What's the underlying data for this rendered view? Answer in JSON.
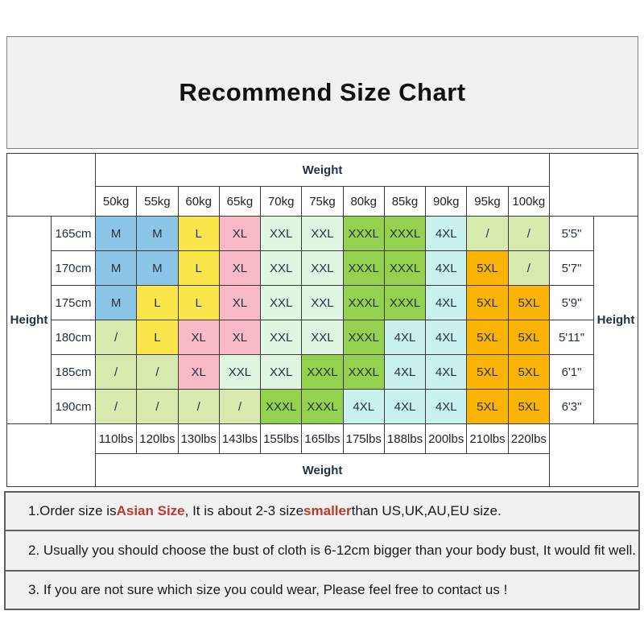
{
  "title": "Recommend Size Chart",
  "chart_data": {
    "type": "table",
    "title": "Recommend Size Chart",
    "weight_axis_label": "Weight",
    "height_axis_label": "Height",
    "kg_columns": [
      "50kg",
      "55kg",
      "60kg",
      "65kg",
      "70kg",
      "75kg",
      "80kg",
      "85kg",
      "90kg",
      "95kg",
      "100kg"
    ],
    "lbs_columns": [
      "110lbs",
      "120lbs",
      "130lbs",
      "143lbs",
      "155lbs",
      "165lbs",
      "175lbs",
      "188lbs",
      "200lbs",
      "210lbs",
      "220lbs"
    ],
    "rows": [
      {
        "cm": "165cm",
        "ft": "5'5\"",
        "sizes": [
          "M",
          "M",
          "L",
          "XL",
          "XXL",
          "XXL",
          "XXXL",
          "XXXL",
          "4XL",
          "/",
          "/"
        ]
      },
      {
        "cm": "170cm",
        "ft": "5'7\"",
        "sizes": [
          "M",
          "M",
          "L",
          "XL",
          "XXL",
          "XXL",
          "XXXL",
          "XXXL",
          "4XL",
          "5XL",
          "/"
        ]
      },
      {
        "cm": "175cm",
        "ft": "5'9\"",
        "sizes": [
          "M",
          "L",
          "L",
          "XL",
          "XXL",
          "XXL",
          "XXXL",
          "XXXL",
          "4XL",
          "5XL",
          "5XL"
        ]
      },
      {
        "cm": "180cm",
        "ft": "5'11\"",
        "sizes": [
          "/",
          "L",
          "XL",
          "XL",
          "XXL",
          "XXL",
          "XXXL",
          "4XL",
          "4XL",
          "5XL",
          "5XL"
        ]
      },
      {
        "cm": "185cm",
        "ft": "6'1\"",
        "sizes": [
          "/",
          "/",
          "XL",
          "XXL",
          "XXL",
          "XXXL",
          "XXXL",
          "4XL",
          "4XL",
          "5XL",
          "5XL"
        ]
      },
      {
        "cm": "190cm",
        "ft": "6'3\"",
        "sizes": [
          "/",
          "/",
          "/",
          "/",
          "XXXL",
          "XXXL",
          "4XL",
          "4XL",
          "4XL",
          "5XL",
          "5XL"
        ]
      }
    ]
  },
  "size_colors": {
    "M": "#8cc6e6",
    "L": "#fae64b",
    "XL": "#f7bac6",
    "XXL": "#dff6e3",
    "XXXL": "#93d14e",
    "4XL": "#c9f2ef",
    "5XL": "#fbb305",
    "/": "#d9eaae"
  },
  "notes": [
    {
      "parts": [
        {
          "text": "1.Order size is ",
          "red": false
        },
        {
          "text": "Asian Size",
          "red": true
        },
        {
          "text": ", It is about 2-3 size ",
          "red": false
        },
        {
          "text": "smaller",
          "red": true
        },
        {
          "text": " than US,UK,AU,EU size.",
          "red": false
        }
      ]
    },
    {
      "parts": [
        {
          "text": "2. Usually you should choose the bust of cloth is 6-12cm bigger than your body bust, It would fit well.",
          "red": false
        }
      ]
    },
    {
      "parts": [
        {
          "text": "3. If you are not sure which size you could wear, Please feel free to contact us !",
          "red": false
        }
      ]
    }
  ],
  "colors": {
    "red_text": "#bb3a2c",
    "note_background": "#f1f1f1",
    "title_background": "#f1f1f1",
    "table_border": "#3a3a3a"
  }
}
